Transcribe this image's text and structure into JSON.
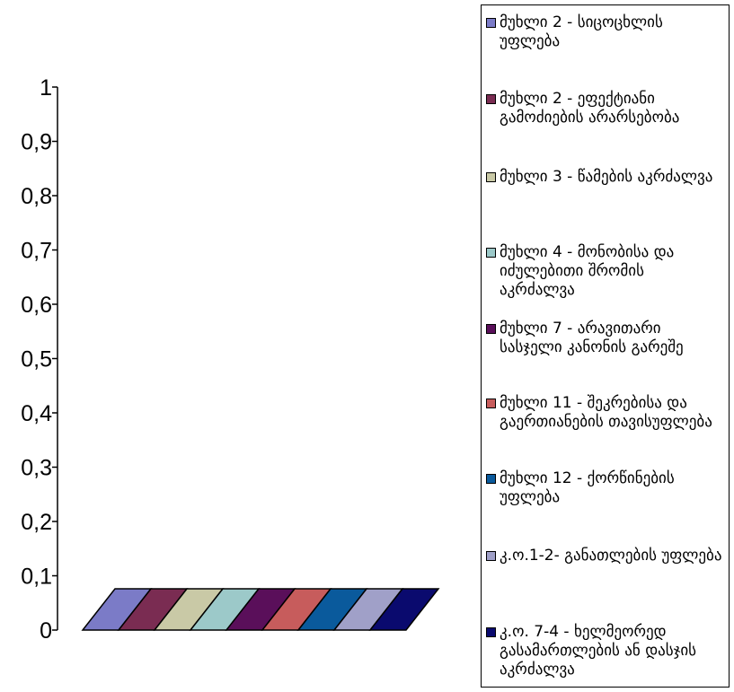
{
  "chart_data": {
    "type": "bar",
    "style": "3d-area",
    "categories": [
      ""
    ],
    "ylim": [
      0,
      1
    ],
    "yticks": [
      "0",
      "0,1",
      "0,2",
      "0,3",
      "0,4",
      "0,5",
      "0,6",
      "0,7",
      "0,8",
      "0,9",
      "1"
    ],
    "grid": false,
    "legend_position": "right",
    "series": [
      {
        "name": "მუხლი 2 - სიცოცხლის უფლება",
        "values": [
          0
        ],
        "color": "#7b7bc7"
      },
      {
        "name": "მუხლი 2 - ეფექტიანი გამოძიების არარსებობა",
        "values": [
          0
        ],
        "color": "#7a2c52"
      },
      {
        "name": "მუხლი 3 - წამების აკრძალვა",
        "values": [
          0
        ],
        "color": "#c9c9a6"
      },
      {
        "name": "მუხლი 4 - მონობისა და იძულებითი შრომის აკრძალვა",
        "values": [
          0
        ],
        "color": "#9cc9c9"
      },
      {
        "name": "მუხლი 7 - არავითარი სასჯელი კანონის გარეშე",
        "values": [
          0
        ],
        "color": "#5a0f5a"
      },
      {
        "name": "მუხლი 11 - შეკრებისა და გაერთიანების თავისუფლება",
        "values": [
          0
        ],
        "color": "#c75c5c"
      },
      {
        "name": "მუხლი 12 - ქორწინების უფლება",
        "values": [
          0
        ],
        "color": "#0a5a9c"
      },
      {
        "name": "კ.ო.1-2- განათლების უფლება",
        "values": [
          0
        ],
        "color": "#a0a0c8"
      },
      {
        "name": "კ.ო. 7-4 - ხელმეორედ გასამართლების ან დასჯის აკრძალვა",
        "values": [
          0
        ],
        "color": "#0a0a6e"
      }
    ]
  }
}
